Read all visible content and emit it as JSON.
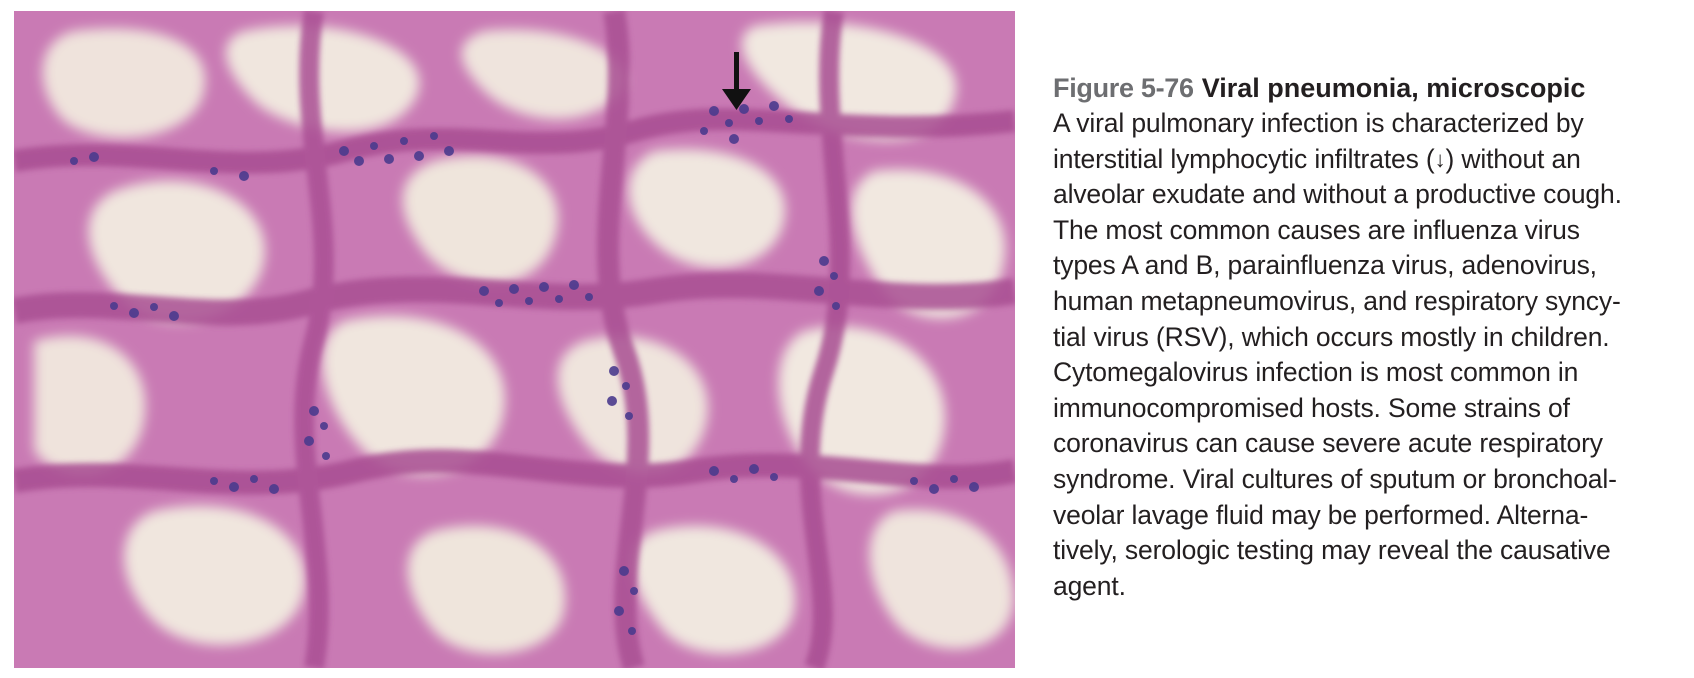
{
  "colors": {
    "background": "#ffffff",
    "tissue_pink": "#cf7fb8",
    "stroma_magenta": "#b25a9a",
    "nuclei_purple": "#4a3a8c",
    "airspace": "#efe6dc",
    "caption_text": "#231f20",
    "figure_number": "#6d6e71"
  },
  "figure": {
    "image_alt": "Histology micrograph of lung tissue with interstitial lymphocytic infiltrates",
    "arrow_icon": "down-arrow-icon"
  },
  "caption": {
    "figure_number": "Figure 5-76",
    "title": "Viral pneumonia, microscopic",
    "lines": [
      "A viral pulmonary infection is characterized by",
      "interstitial lymphocytic infiltrates (",
      "alveolar exudate and without a productive cough.",
      "The most common causes are influenza virus",
      "types A and B, parainfluenza virus, adenovirus,",
      "human metapneumovirus, and respiratory syncy-",
      "tial virus (RSV), which occurs mostly in children.",
      "Cytomegalovirus infection is most common in",
      "immunocompromised hosts. Some strains of",
      "coronavirus can cause severe acute respiratory",
      "syndrome. Viral cultures of sputum or bronchoal-",
      "veolar lavage fluid may be performed. Alterna-",
      "tively, serologic testing may reveal the causative",
      "agent."
    ],
    "arrow_glyph": "↓",
    "line2_tail": ") without an"
  }
}
